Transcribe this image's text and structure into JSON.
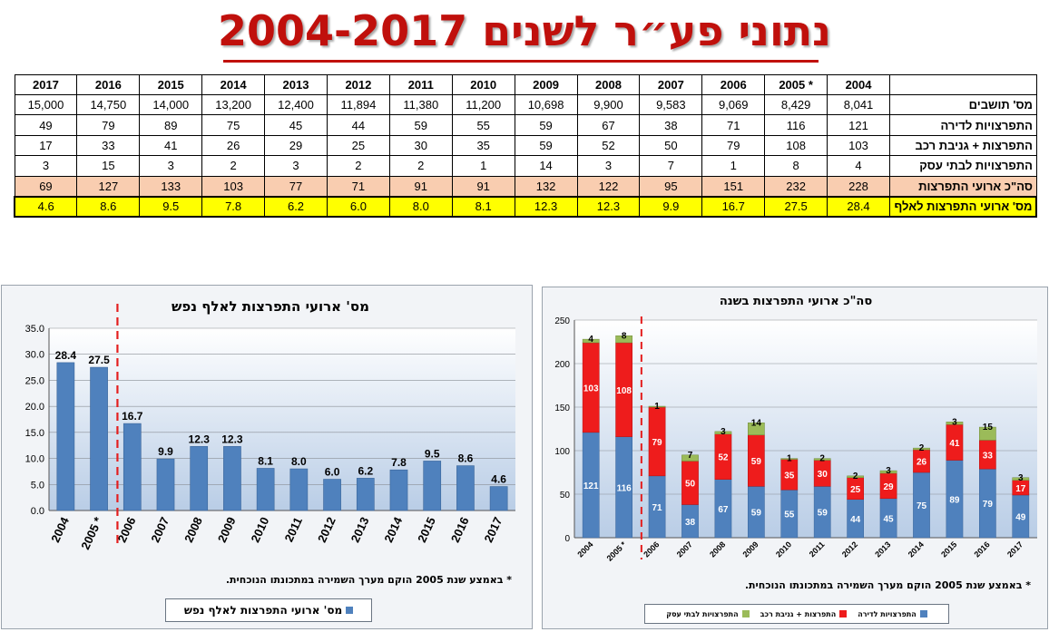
{
  "page": {
    "title": "נתוני פע״ר לשנים 2004-2017"
  },
  "table": {
    "years": [
      "2017",
      "2016",
      "2015",
      "2014",
      "2013",
      "2012",
      "2011",
      "2010",
      "2009",
      "2008",
      "2007",
      "2006",
      "2005 *",
      "2004"
    ],
    "rows": [
      {
        "label": "מס' תושבים",
        "values": [
          "15,000",
          "14,750",
          "14,000",
          "13,200",
          "12,400",
          "11,894",
          "11,380",
          "11,200",
          "10,698",
          "9,900",
          "9,583",
          "9,069",
          "8,429",
          "8,041"
        ]
      },
      {
        "label": "התפרצויות לדירה",
        "values": [
          "49",
          "79",
          "89",
          "75",
          "45",
          "44",
          "59",
          "55",
          "59",
          "67",
          "38",
          "71",
          "116",
          "121"
        ]
      },
      {
        "label": "התפרצות + גניבת רכב",
        "values": [
          "17",
          "33",
          "41",
          "26",
          "29",
          "25",
          "30",
          "35",
          "59",
          "52",
          "50",
          "79",
          "108",
          "103"
        ]
      },
      {
        "label": "התפרצויות לבתי עסק",
        "values": [
          "3",
          "15",
          "3",
          "2",
          "3",
          "2",
          "2",
          "1",
          "14",
          "3",
          "7",
          "1",
          "8",
          "4"
        ]
      },
      {
        "label": "סה\"כ ארועי התפרצות",
        "values": [
          "69",
          "127",
          "133",
          "103",
          "77",
          "71",
          "91",
          "91",
          "132",
          "122",
          "95",
          "151",
          "232",
          "228"
        ]
      },
      {
        "label": "מס' ארועי התפרצות לאלף נפש",
        "values": [
          "4.6",
          "8.6",
          "9.5",
          "7.8",
          "6.2",
          "6.0",
          "8.0",
          "8.1",
          "12.3",
          "12.3",
          "9.9",
          "16.7",
          "27.5",
          "28.4"
        ]
      }
    ]
  },
  "chart_data": [
    {
      "type": "bar",
      "title": "מס' ארועי התפרצות לאלף נפש",
      "categories": [
        "2004",
        "2005 *",
        "2006",
        "2007",
        "2008",
        "2009",
        "2010",
        "2011",
        "2012",
        "2013",
        "2014",
        "2015",
        "2016",
        "2017"
      ],
      "series": [
        {
          "name": "מס' ארועי התפרצות לאלף נפש",
          "values": [
            28.4,
            27.5,
            16.7,
            9.9,
            12.3,
            12.3,
            8.1,
            8.0,
            6.0,
            6.2,
            7.8,
            9.5,
            8.6,
            4.6
          ]
        }
      ],
      "ylim": [
        0,
        35
      ],
      "yticks": [
        "0.0",
        "5.0",
        "10.0",
        "15.0",
        "20.0",
        "25.0",
        "30.0",
        "35.0"
      ],
      "value_labels": [
        "28.4",
        "27.5",
        "16.7",
        "9.9",
        "12.3",
        "12.3",
        "8.1",
        "8.0",
        "6.0",
        "6.2",
        "7.8",
        "9.5",
        "8.6",
        "4.6"
      ],
      "legend": "bottom",
      "grid": true,
      "footnote": "* באמצע שנת 2005 הוקם מערך השמירה במתכונתו הנוכחית.",
      "colors": {
        "bar": "#4f81bd",
        "divider": "#e41e1e"
      }
    },
    {
      "type": "bar",
      "stacked": true,
      "title": "סה\"כ ארועי התפרצות בשנה",
      "categories": [
        "2004",
        "2005 *",
        "2006",
        "2007",
        "2008",
        "2009",
        "2010",
        "2011",
        "2012",
        "2013",
        "2014",
        "2015",
        "2016",
        "2017"
      ],
      "series": [
        {
          "name": "התפרצויות לדירה",
          "values": [
            121,
            116,
            71,
            38,
            67,
            59,
            55,
            59,
            44,
            45,
            75,
            89,
            79,
            49
          ],
          "color": "#4f81bd"
        },
        {
          "name": "התפרצות + גניבת רכב",
          "values": [
            103,
            108,
            79,
            50,
            52,
            59,
            35,
            30,
            25,
            29,
            26,
            41,
            33,
            17
          ],
          "color": "#ee1c1c"
        },
        {
          "name": "התפרצויות לבתי עסק",
          "values": [
            4,
            8,
            1,
            7,
            3,
            14,
            1,
            2,
            2,
            3,
            2,
            3,
            15,
            3
          ],
          "color": "#9bbb59"
        }
      ],
      "ylim": [
        0,
        250
      ],
      "yticks": [
        "0",
        "50",
        "100",
        "150",
        "200",
        "250"
      ],
      "legend": "bottom",
      "grid": true,
      "footnote": "* באמצע שנת 2005 הוקם מערך השמירה במתכונתו הנוכחית."
    }
  ]
}
